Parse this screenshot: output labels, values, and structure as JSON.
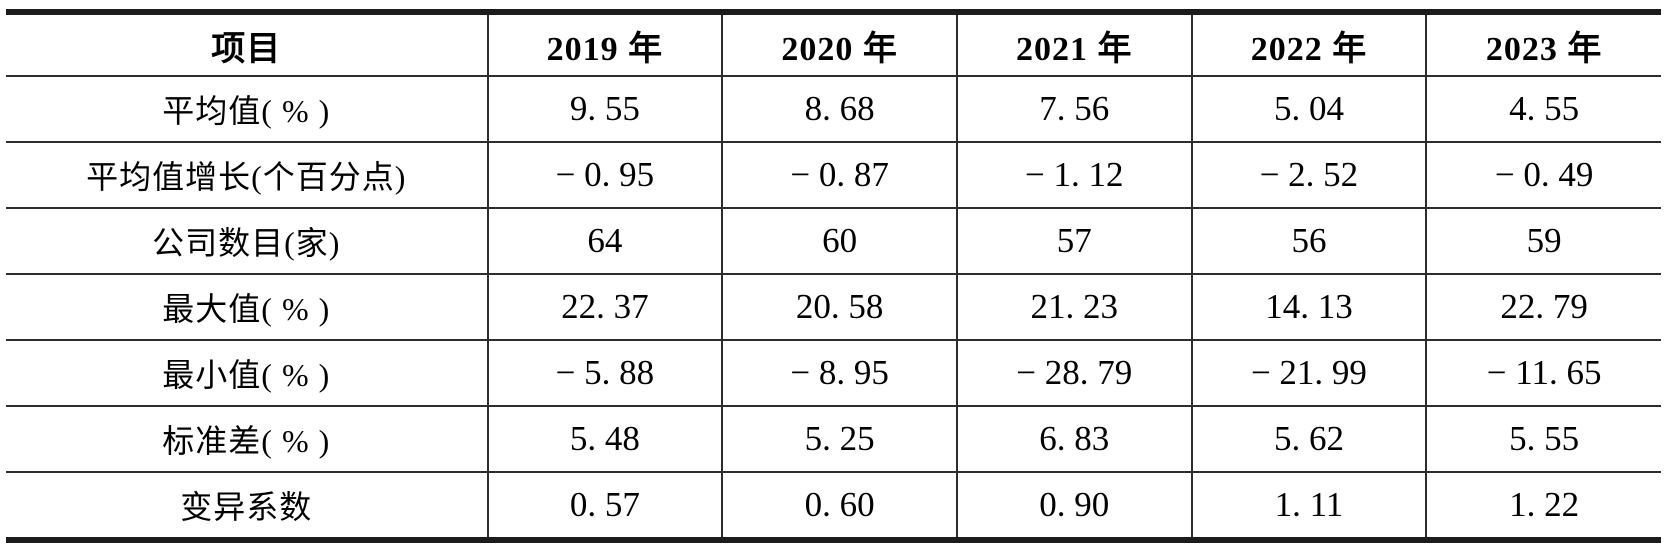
{
  "page": {
    "background_color": "#ffffff",
    "text_color": "#000000",
    "rule_color": "#1c1c1c"
  },
  "table": {
    "columns": [
      "项目",
      "2019 年",
      "2020 年",
      "2021 年",
      "2022 年",
      "2023 年"
    ],
    "rows": [
      {
        "label": "平均值( % )",
        "values": [
          "9. 55",
          "8. 68",
          "7. 56",
          "5. 04",
          "4. 55"
        ]
      },
      {
        "label": "平均值增长(个百分点)",
        "values": [
          "− 0. 95",
          "− 0. 87",
          "− 1. 12",
          "− 2. 52",
          "− 0. 49"
        ]
      },
      {
        "label": "公司数目(家)",
        "values": [
          "64",
          "60",
          "57",
          "56",
          "59"
        ]
      },
      {
        "label": "最大值( % )",
        "values": [
          "22. 37",
          "20. 58",
          "21. 23",
          "14. 13",
          "22. 79"
        ]
      },
      {
        "label": "最小值( % )",
        "values": [
          "− 5. 88",
          "− 8. 95",
          "− 28. 79",
          "− 21. 99",
          "− 11. 65"
        ]
      },
      {
        "label": "标准差( % )",
        "values": [
          "5. 48",
          "5. 25",
          "6. 83",
          "5. 62",
          "5. 55"
        ]
      },
      {
        "label": "变异系数",
        "values": [
          "0. 57",
          "0. 60",
          "0. 90",
          "1. 11",
          "1. 22"
        ]
      }
    ]
  },
  "chart_data": {
    "type": "table",
    "columns": [
      "项目",
      "2019 年",
      "2020 年",
      "2021 年",
      "2022 年",
      "2023 年"
    ],
    "rows": [
      {
        "label": "平均值(%)",
        "values": [
          9.55,
          8.68,
          7.56,
          5.04,
          4.55
        ]
      },
      {
        "label": "平均值增长(个百分点)",
        "values": [
          -0.95,
          -0.87,
          -1.12,
          -2.52,
          -0.49
        ]
      },
      {
        "label": "公司数目(家)",
        "values": [
          64,
          60,
          57,
          56,
          59
        ]
      },
      {
        "label": "最大值(%)",
        "values": [
          22.37,
          20.58,
          21.23,
          14.13,
          22.79
        ]
      },
      {
        "label": "最小值(%)",
        "values": [
          -5.88,
          -8.95,
          -28.79,
          -21.99,
          -11.65
        ]
      },
      {
        "label": "标准差(%)",
        "values": [
          5.48,
          5.25,
          6.83,
          5.62,
          5.55
        ]
      },
      {
        "label": "变异系数",
        "values": [
          0.57,
          0.6,
          0.9,
          1.11,
          1.22
        ]
      }
    ]
  }
}
